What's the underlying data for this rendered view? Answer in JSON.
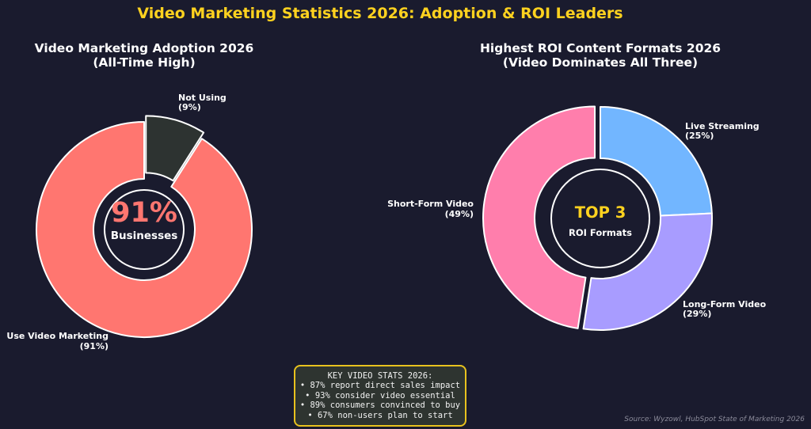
{
  "title": "Video Marketing Statistics 2026: Adoption & ROI Leaders",
  "source": "Source: Wyzowl, HubSpot State of Marketing 2026",
  "colors": {
    "background": "#1a1b2e",
    "title": "#ffd21f",
    "use_video": "#ff7670",
    "not_using": "#2d3331",
    "short_form": "#ff7eac",
    "live_streaming": "#72b6ff",
    "long_form": "#a89cff",
    "box_border": "#e8c21e"
  },
  "chart_data": [
    {
      "type": "pie",
      "variant": "donut",
      "title": "Video Marketing Adoption 2026",
      "subtitle": "(All-Time High)",
      "center": {
        "value": "91%",
        "label": "Businesses"
      },
      "slices": [
        {
          "name": "Not Using",
          "value": 9,
          "label": "(9%)",
          "exploded": true
        },
        {
          "name": "Use Video Marketing",
          "value": 91,
          "label": "(91%)",
          "exploded": false
        }
      ]
    },
    {
      "type": "pie",
      "variant": "donut",
      "title": "Highest ROI Content Formats 2026",
      "subtitle": "(Video Dominates All Three)",
      "center": {
        "value": "TOP 3",
        "label": "ROI Formats"
      },
      "slices": [
        {
          "name": "Live Streaming",
          "value": 25,
          "label": "(25%)",
          "exploded": false
        },
        {
          "name": "Long-Form Video",
          "value": 29,
          "label": "(29%)",
          "exploded": false
        },
        {
          "name": "Short-Form Video",
          "value": 49,
          "label": "(49%)",
          "exploded": true
        }
      ]
    }
  ],
  "stats_box": {
    "heading": "KEY VIDEO STATS 2026:",
    "items": [
      "• 87% report direct sales impact",
      "• 93% consider video essential",
      "• 89% consumers convinced to buy",
      "• 67% non-users plan to start"
    ]
  }
}
